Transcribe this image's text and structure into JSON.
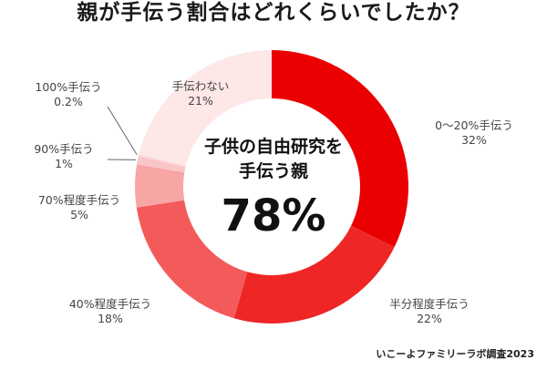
{
  "chart_data": {
    "type": "pie",
    "title": "親が手伝う割合はどれくらいでしたか？",
    "center_label": [
      "子供の自由研究を",
      "手伝う親"
    ],
    "center_value": "78%",
    "slices": [
      {
        "label": "0〜20%手伝う",
        "value": 32,
        "display": "32%",
        "color": "#ea0000"
      },
      {
        "label": "半分程度手伝う",
        "value": 22,
        "display": "22%",
        "color": "#ee2626"
      },
      {
        "label": "40%程度手伝う",
        "value": 18,
        "display": "18%",
        "color": "#f35a5a"
      },
      {
        "label": "70%程度手伝う",
        "value": 5,
        "display": "5%",
        "color": "#f7a5a5"
      },
      {
        "label": "90%手伝う",
        "value": 1,
        "display": "1%",
        "color": "#f9c6c6"
      },
      {
        "label": "100%手伝う",
        "value": 0.2,
        "display": "0.2%",
        "color": "#fbd9d9"
      },
      {
        "label": "手伝わない",
        "value": 21,
        "display": "21%",
        "color": "#fde7e7"
      }
    ],
    "credit": "いこーよファミリーラボ調査2023"
  }
}
